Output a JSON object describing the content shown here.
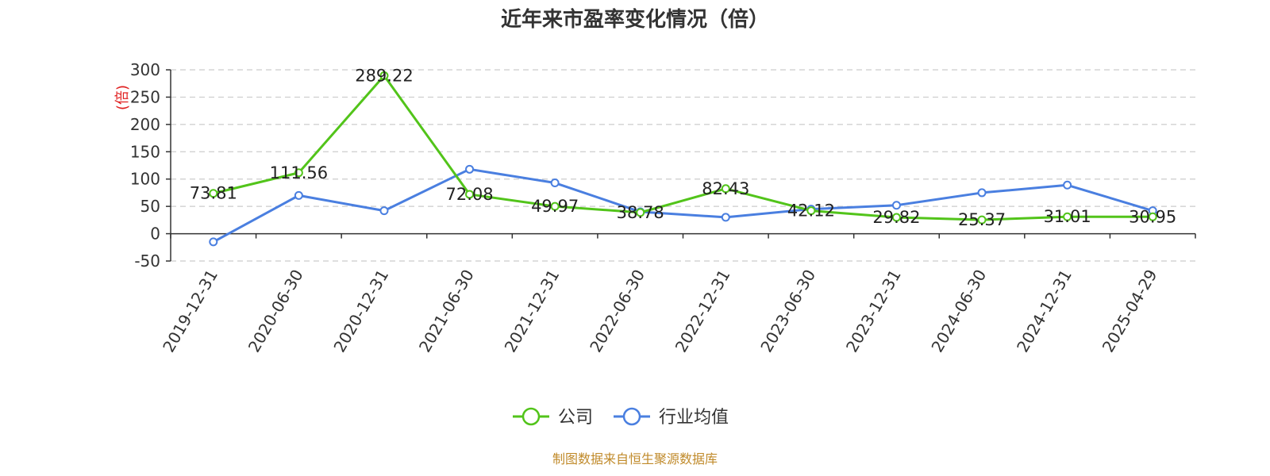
{
  "chart_data": {
    "type": "line",
    "title": "近年来市盈率变化情况（倍）",
    "ylabel": "(倍)",
    "categories": [
      "2019-12-31",
      "2020-06-30",
      "2020-12-31",
      "2021-06-30",
      "2021-12-31",
      "2022-06-30",
      "2022-12-31",
      "2023-06-30",
      "2023-12-31",
      "2024-06-30",
      "2024-12-31",
      "2025-04-29"
    ],
    "y_ticks": [
      "300",
      "250",
      "200",
      "150",
      "100",
      "50",
      "0",
      "-50"
    ],
    "ylim": [
      -50,
      300
    ],
    "grid": true,
    "legend_position": "bottom",
    "series": [
      {
        "name": "公司",
        "color": "#52c41a",
        "values": [
          73.81,
          111.56,
          289.22,
          72.08,
          49.97,
          38.78,
          82.43,
          42.12,
          29.82,
          25.37,
          31.01,
          30.95
        ],
        "labels": [
          "73.81",
          "111.56",
          "289.22",
          "72.08",
          "49.97",
          "38.78",
          "82.43",
          "42.12",
          "29.82",
          "25.37",
          "31.01",
          "30.95"
        ]
      },
      {
        "name": "行业均值",
        "color": "#4a7fe0",
        "values": [
          -15,
          70,
          42,
          118,
          93,
          40,
          30,
          45,
          52,
          75,
          89,
          42
        ]
      }
    ],
    "source": "制图数据来自恒生聚源数据库"
  }
}
